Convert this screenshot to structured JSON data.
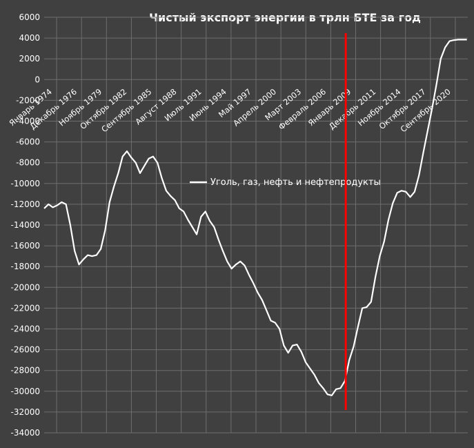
{
  "chart_data": {
    "type": "line",
    "title": "Чистый экспорт энергии в трлн БТЕ за год",
    "xlabel": "",
    "ylabel": "",
    "ylim": [
      -34000,
      6000
    ],
    "yticks": [
      6000,
      4000,
      2000,
      0,
      -2000,
      -4000,
      -6000,
      -8000,
      -10000,
      -12000,
      -14000,
      -16000,
      -18000,
      -20000,
      -22000,
      -24000,
      -26000,
      -28000,
      -30000,
      -32000,
      -34000
    ],
    "x_tick_labels": [
      "Январь 1974",
      "Декабрь 1976",
      "Ноябрь 1979",
      "Октябрь 1982",
      "Сентябрь 1985",
      "Август 1988",
      "Июль 1991",
      "Июнь 1994",
      "Май 1997",
      "Апрель 2000",
      "Март 2003",
      "Февраль 2006",
      "Январь 2009",
      "Декабрь 2011",
      "Ноябрь 2014",
      "Октябрь 2017",
      "Сентябрь 2020"
    ],
    "grid": true,
    "legend_position": "center",
    "line_color": "#ffffff",
    "marker_line_color": "#ff0000",
    "marker_line_date": 2008.6,
    "series": [
      {
        "name": "Уголь, газ, нефть и нефтепродукты",
        "x": [
          1974.0,
          1974.5,
          1975.0,
          1975.5,
          1976.0,
          1976.5,
          1977.0,
          1977.5,
          1978.0,
          1978.5,
          1979.0,
          1979.5,
          1980.0,
          1980.5,
          1981.0,
          1981.5,
          1982.0,
          1982.5,
          1983.0,
          1983.5,
          1984.0,
          1984.5,
          1985.0,
          1985.5,
          1986.0,
          1986.5,
          1987.0,
          1987.5,
          1988.0,
          1988.5,
          1989.0,
          1989.5,
          1990.0,
          1990.5,
          1991.0,
          1991.5,
          1992.0,
          1992.5,
          1993.0,
          1993.5,
          1994.0,
          1994.5,
          1995.0,
          1995.5,
          1996.0,
          1996.5,
          1997.0,
          1997.5,
          1998.0,
          1998.5,
          1999.0,
          1999.5,
          2000.0,
          2000.5,
          2001.0,
          2001.5,
          2002.0,
          2002.5,
          2003.0,
          2003.5,
          2004.0,
          2004.5,
          2005.0,
          2005.5,
          2006.0,
          2006.5,
          2007.0,
          2007.5,
          2008.0,
          2008.5,
          2009.0,
          2009.5,
          2010.0,
          2010.5,
          2011.0,
          2011.5,
          2012.0,
          2012.5,
          2013.0,
          2013.5,
          2014.0,
          2014.5,
          2015.0,
          2015.5,
          2016.0,
          2016.5,
          2017.0,
          2017.5,
          2018.0,
          2018.5,
          2019.0,
          2019.5,
          2020.0,
          2020.5,
          2021.0,
          2021.5,
          2022.0,
          2022.5
        ],
        "values": [
          -12400,
          -12000,
          -12300,
          -12100,
          -11800,
          -12000,
          -14000,
          -16500,
          -17800,
          -17300,
          -16900,
          -17000,
          -16900,
          -16300,
          -14500,
          -11800,
          -10300,
          -9000,
          -7400,
          -6900,
          -7500,
          -8000,
          -9000,
          -8300,
          -7600,
          -7400,
          -8000,
          -9500,
          -10700,
          -11200,
          -11600,
          -12400,
          -12700,
          -13500,
          -14200,
          -14900,
          -13200,
          -12700,
          -13600,
          -14200,
          -15400,
          -16500,
          -17500,
          -18200,
          -17800,
          -17500,
          -17900,
          -18800,
          -19600,
          -20500,
          -21200,
          -22200,
          -23200,
          -23400,
          -24000,
          -25600,
          -26300,
          -25600,
          -25500,
          -26200,
          -27200,
          -27800,
          -28400,
          -29200,
          -29700,
          -30300,
          -30400,
          -29800,
          -29700,
          -29000,
          -27000,
          -25700,
          -23800,
          -22000,
          -21900,
          -21400,
          -19000,
          -17000,
          -15600,
          -13500,
          -11900,
          -10900,
          -10700,
          -10800,
          -11300,
          -10800,
          -9200,
          -7000,
          -4900,
          -2800,
          -500,
          2000,
          3100,
          3700,
          3800,
          3850,
          3850,
          3850
        ]
      }
    ]
  }
}
